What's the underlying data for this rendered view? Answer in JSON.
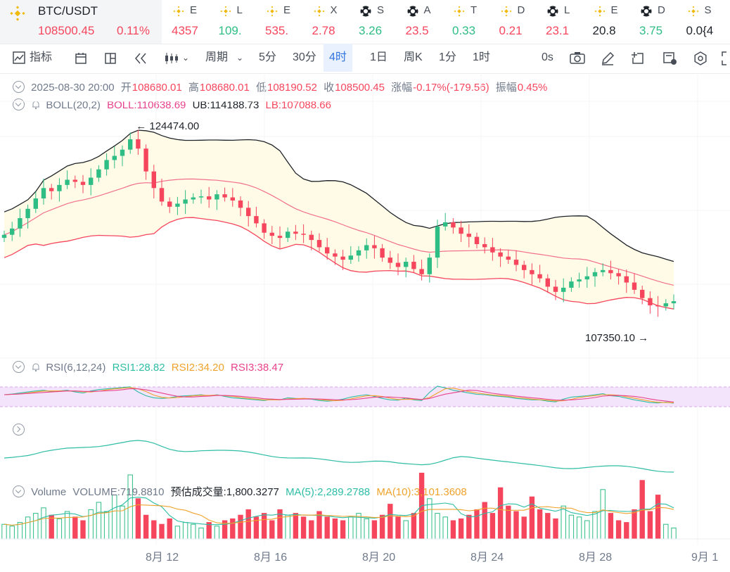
{
  "header": {
    "pair": "BTC/USDT",
    "price": "108500.45",
    "change": "0.11%",
    "tickers": [
      {
        "sym": "E",
        "val": "4357",
        "color": "#f6465d",
        "icon": "binance-coin-icon"
      },
      {
        "sym": "L",
        "val": "109.",
        "color": "#2ebd85",
        "icon": "binance-coin-icon"
      },
      {
        "sym": "E",
        "val": "535.",
        "color": "#f6465d",
        "icon": "binance-coin-icon"
      },
      {
        "sym": "X",
        "val": "2.78",
        "color": "#f6465d",
        "icon": "binance-coin-icon"
      },
      {
        "sym": "S",
        "val": "3.26",
        "color": "#2ebd85",
        "icon": "soccer-ball-icon"
      },
      {
        "sym": "A",
        "val": "23.5",
        "color": "#f6465d",
        "icon": "soccer-ball-icon"
      },
      {
        "sym": "T",
        "val": "0.33",
        "color": "#2ebd85",
        "icon": "binance-coin-icon"
      },
      {
        "sym": "D",
        "val": "0.21",
        "color": "#f6465d",
        "icon": "binance-coin-icon"
      },
      {
        "sym": "L",
        "val": "23.1",
        "color": "#f6465d",
        "icon": "soccer-ball-icon"
      },
      {
        "sym": "E",
        "val": "20.8",
        "color": "#1e2329",
        "icon": "binance-coin-icon"
      },
      {
        "sym": "D",
        "val": "3.75",
        "color": "#2ebd85",
        "icon": "soccer-ball-icon"
      },
      {
        "sym": "S",
        "val": "0.0{4",
        "color": "#1e2329",
        "icon": "binance-coin-icon"
      }
    ]
  },
  "toolbar": {
    "indicators": "指标",
    "period": "周期",
    "intervals": [
      "5分",
      "30分",
      "4时",
      "1日",
      "周K",
      "1分",
      "1时"
    ],
    "active_interval": "4时",
    "countdown": "0s"
  },
  "ohlc": {
    "datetime": "2025-08-30 20:00",
    "open_label": "开",
    "open": "108680.01",
    "high_label": "高",
    "high": "108680.01",
    "low_label": "低",
    "low": "108190.52",
    "close_label": "收",
    "close": "108500.45",
    "change_label": "涨幅",
    "change": "-0.17%(-179.56)",
    "amplitude_label": "振幅",
    "amplitude": "0.45%"
  },
  "boll": {
    "name": "BOLL(20,2)",
    "boll": "BOLL:110638.69",
    "ub": "UB:114188.73",
    "lb": "LB:107088.66"
  },
  "price_marks": {
    "high": "124474.00",
    "low": "107350.10"
  },
  "rsi": {
    "name": "RSI(6,12,24)",
    "rsi1": "RSI1:28.82",
    "rsi2": "RSI2:34.20",
    "rsi3": "RSI3:38.47"
  },
  "volume": {
    "name": "Volume",
    "volume": "VOLUME:719.8810",
    "estimated": "预估成交量:1,800.3277",
    "ma5": "MA(5):2,289.2788",
    "ma10": "MA(10):3,101.3608"
  },
  "xaxis": [
    "8月 12",
    "8月 16",
    "8月 20",
    "8月 24",
    "8月 28",
    "9月 1"
  ],
  "colors": {
    "up": "#2ebd85",
    "down": "#f6465d",
    "boll_mid": "#f1708d",
    "band_fill": "#fffbe6",
    "accent": "#3375e0"
  },
  "chart_data": {
    "type": "candlestick",
    "series": [
      {
        "name": "price",
        "values": [
          115000,
          115600,
          116600,
          117500,
          118500,
          119500,
          119200,
          119800,
          120300,
          120100,
          119800,
          120500,
          121300,
          122200,
          122600,
          123200,
          124200,
          123300,
          121100,
          119500,
          118200,
          117700,
          118000,
          118400,
          118600,
          118700,
          118400,
          118900,
          118600,
          118300,
          117600,
          116800,
          116100,
          115200,
          114900,
          114700,
          115300,
          115100,
          115000,
          114500,
          113800,
          113200,
          112900,
          112600,
          113000,
          113500,
          114000,
          113700,
          112800,
          112300,
          111900,
          112400,
          111700,
          111200,
          112800,
          115800,
          116200,
          115700,
          115100,
          114800,
          114100,
          113800,
          113300,
          112900,
          112600,
          112100,
          111600,
          111200,
          110800,
          110000,
          109500,
          109900,
          110500,
          110700,
          111000,
          111400,
          111600,
          111300,
          111000,
          110400,
          109700,
          108900,
          108200,
          108100,
          108400,
          108600
        ]
      },
      {
        "name": "RSI",
        "values": [
          55,
          57,
          60,
          63,
          66,
          68,
          64,
          66,
          68,
          63,
          60,
          66,
          70,
          72,
          74,
          76,
          78,
          63,
          52,
          46,
          44,
          46,
          50,
          52,
          53,
          55,
          51,
          55,
          50,
          46,
          44,
          42,
          40,
          38,
          42,
          40,
          46,
          44,
          43,
          42,
          38,
          36,
          38,
          42,
          48,
          52,
          55,
          50,
          44,
          40,
          39,
          45,
          40,
          38,
          62,
          80,
          75,
          68,
          64,
          60,
          56,
          55,
          52,
          50,
          48,
          44,
          42,
          40,
          40,
          36,
          34,
          42,
          48,
          50,
          52,
          55,
          58,
          52,
          50,
          45,
          40,
          36,
          32,
          31,
          33,
          30
        ]
      },
      {
        "name": "Volume",
        "values": [
          0.8,
          0.7,
          0.9,
          1.2,
          1.4,
          1.7,
          1.3,
          1.1,
          1.5,
          1.2,
          1.0,
          1.6,
          2.0,
          1.5,
          2.4,
          1.8,
          3.5,
          2.2,
          1.3,
          1.0,
          0.8,
          1.1,
          0.7,
          0.9,
          0.8,
          0.6,
          0.9,
          0.7,
          1.0,
          1.1,
          1.3,
          1.6,
          1.2,
          1.4,
          1.0,
          1.6,
          1.3,
          1.4,
          1.2,
          1.0,
          1.5,
          1.2,
          1.1,
          1.0,
          1.2,
          1.4,
          1.1,
          1.0,
          1.3,
          1.9,
          1.2,
          1.0,
          1.4,
          3.6,
          2.2,
          1.4,
          1.2,
          1.0,
          1.1,
          1.3,
          1.6,
          2.0,
          1.4,
          2.8,
          1.8,
          1.5,
          1.2,
          2.3,
          1.6,
          1.4,
          1.1,
          1.8,
          1.3,
          1.2,
          1.0,
          1.5,
          2.7,
          1.4,
          1.0,
          0.9,
          1.6,
          3.2,
          1.5,
          2.4,
          0.8,
          0.6
        ]
      }
    ]
  }
}
